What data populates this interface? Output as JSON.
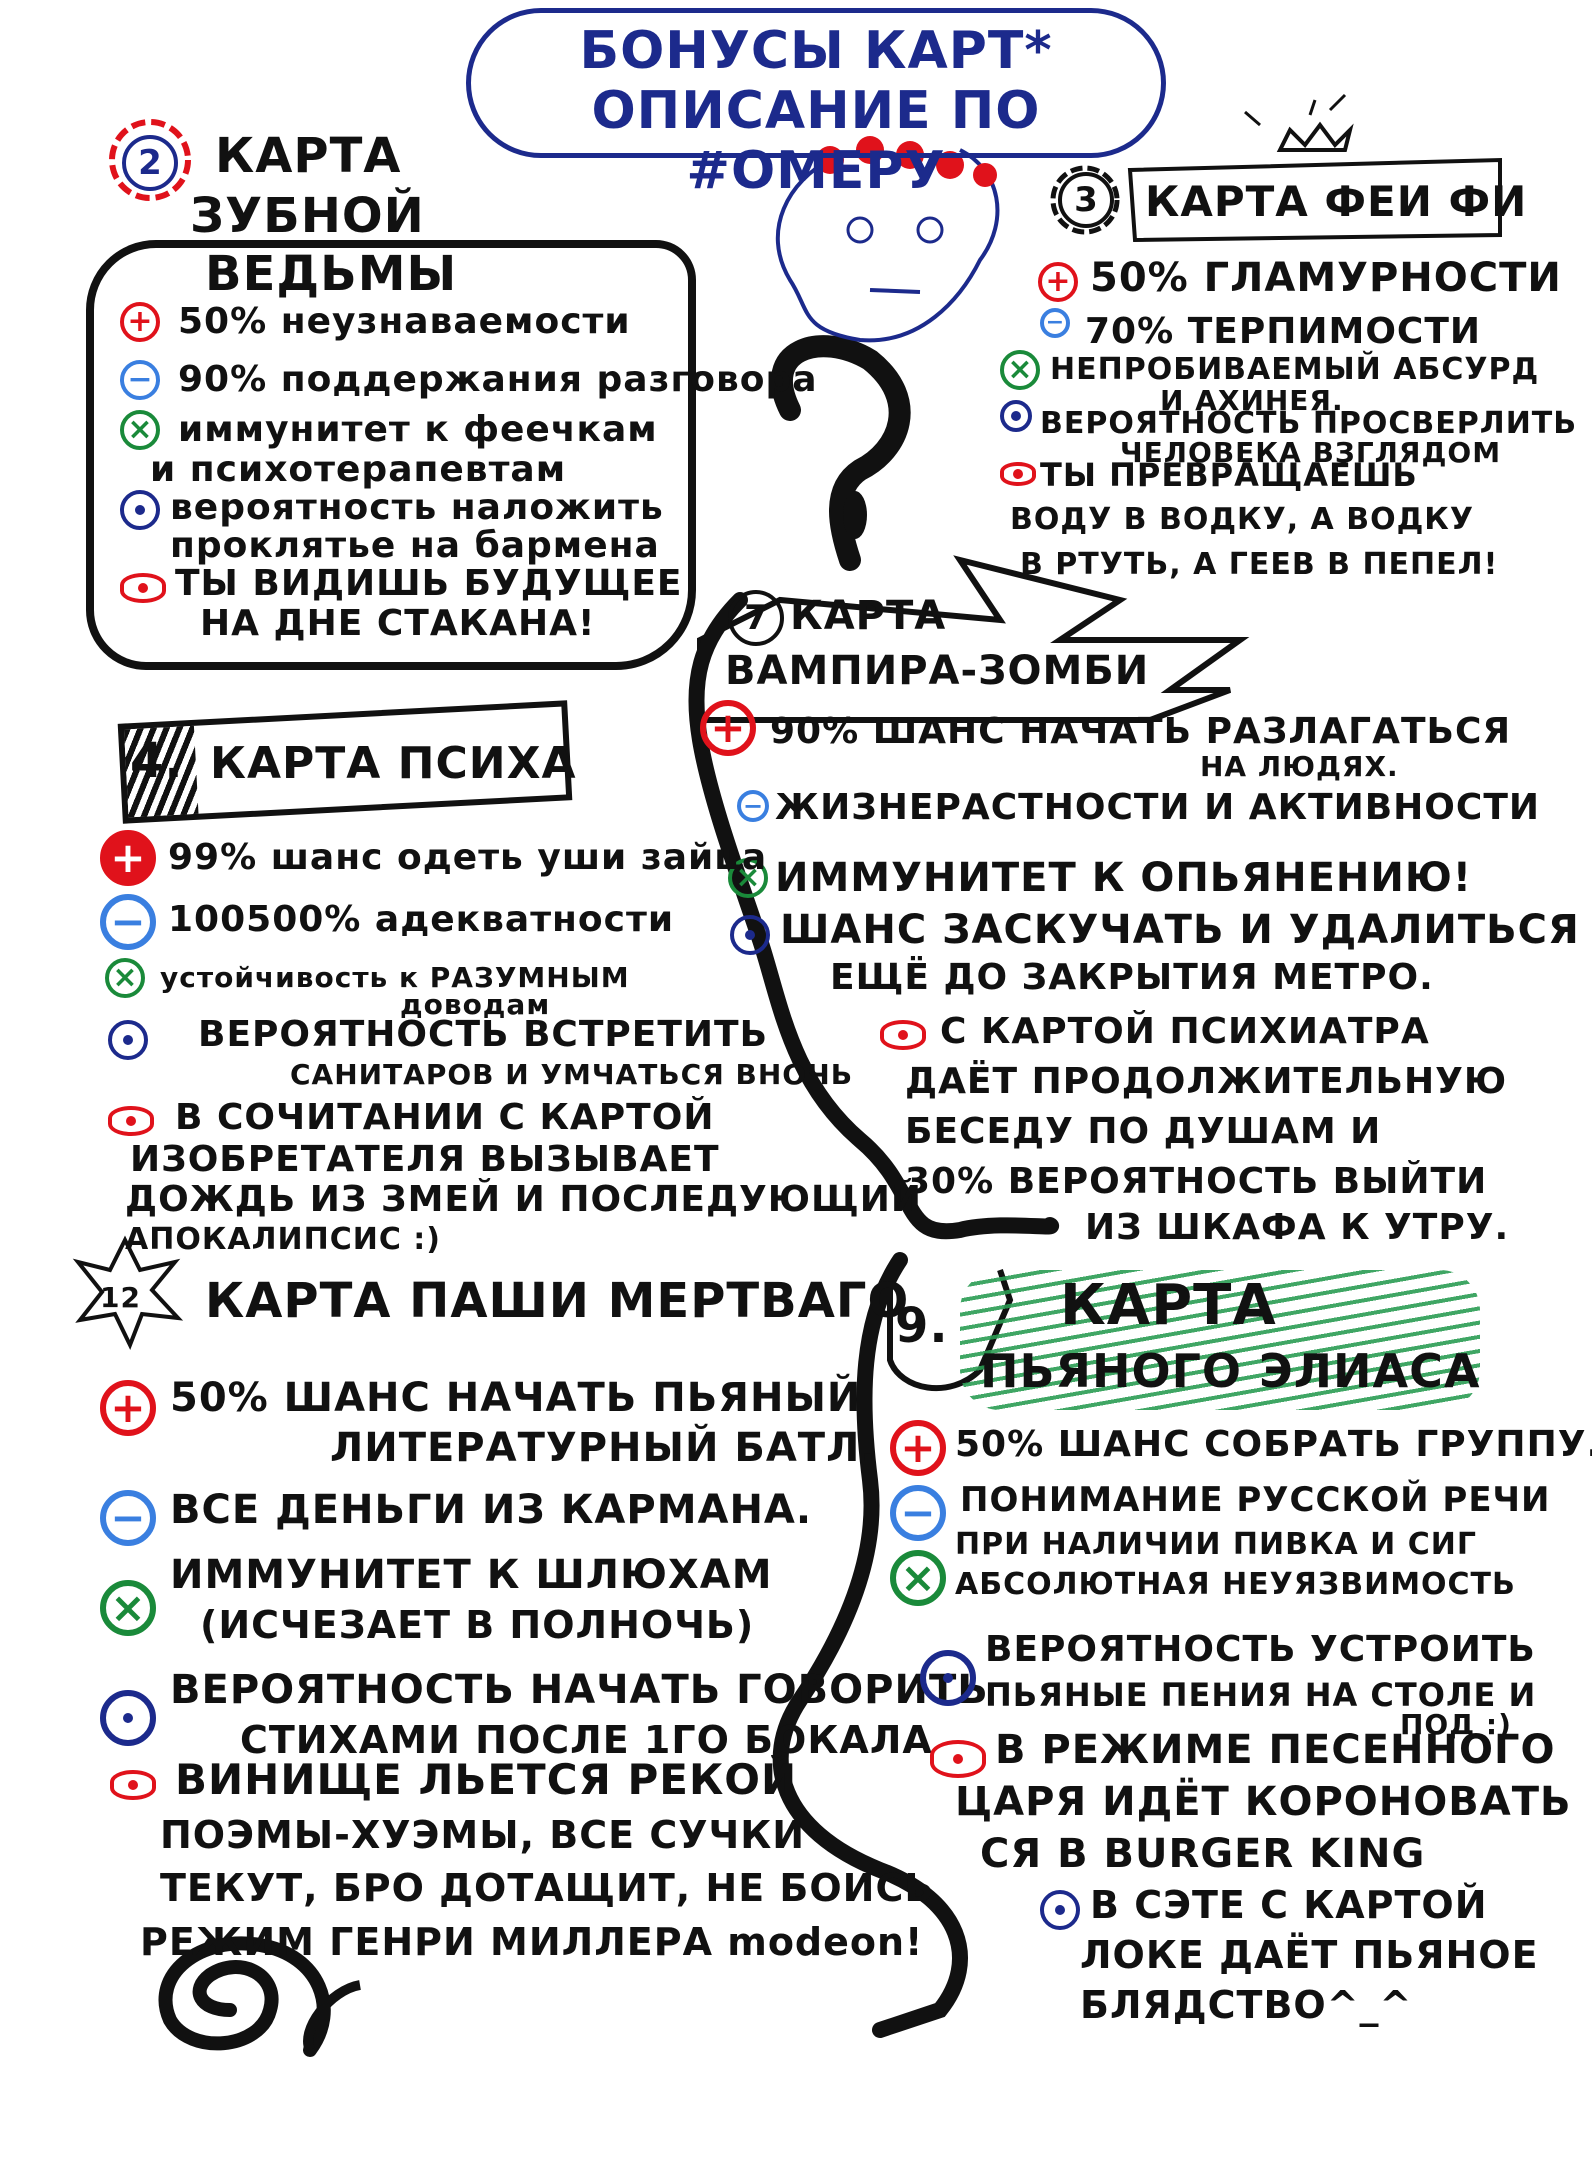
{
  "header": {
    "line1": "БОНУСЫ КАРТ*",
    "line2": "ОПИСАНИЕ ПО #ОМЕРУ"
  },
  "witch": {
    "number": "2",
    "title": [
      "КАРТА",
      "ЗУБНОЙ",
      "ВЕДЬМЫ"
    ],
    "plus": "50% неузнаваемости",
    "minus": "90% поддержания разговора",
    "cross": [
      "иммунитет к феечкам",
      "и психотерапевтам"
    ],
    "dot": [
      "вероятность наложить",
      "проклятье на бармена"
    ],
    "eye": [
      "ТЫ ВИДИШЬ БУДУЩЕЕ",
      "НА ДНЕ СТАКАНА!"
    ]
  },
  "fairy": {
    "number": "3",
    "title": "КАРТА ФЕИ ФИ",
    "plus": "50% ГЛАМУРНОСТИ",
    "minus": "70% ТЕРПИМОСТИ",
    "cross": [
      "НЕПРОБИВАЕМЫЙ АБСУРД",
      "И АХИНЕЯ."
    ],
    "dot": [
      "ВЕРОЯТНОСТЬ ПРОСВЕРЛИТЬ",
      "ЧЕЛОВЕКА ВЗГЛЯДОМ"
    ],
    "eye": [
      "ТЫ ПРЕВРАЩАЕШЬ",
      "ВОДУ В ВОДКУ, А ВОДКУ",
      "В РТУТЬ, А ГЕЕВ В ПЕПЕЛ!"
    ]
  },
  "vampire": {
    "number": "7",
    "title": [
      "КАРТА",
      "ВАМПИРА-ЗОМБИ"
    ],
    "plus": [
      "90% ШАНС НАЧАТЬ РАЗЛАГАТЬСЯ",
      "НА ЛЮДЯХ."
    ],
    "minus": "ЖИЗНЕРАСТНОСТИ И АКТИВНОСТИ",
    "cross": "ИММУНИТЕТ К ОПЬЯНЕНИЮ!",
    "dot": [
      "ШАНС ЗАСКУЧАТЬ И УДАЛИТЬСЯ",
      "ЕЩЁ ДО ЗАКРЫТИЯ МЕТРО."
    ],
    "eye": [
      "С КАРТОЙ ПСИХИАТРА",
      "ДАЁТ ПРОДОЛЖИТЕЛЬНУЮ",
      "БЕСЕДУ ПО ДУШАМ И",
      "30% ВЕРОЯТНОСТЬ ВЫЙТИ",
      "ИЗ ШКАФА К УТРУ."
    ]
  },
  "psycho": {
    "number": "4.",
    "title": "КАРТА ПСИХА",
    "plus": "99% шанс одеть уши зайца",
    "minus": "100500% адекватности",
    "cross": [
      "устойчивость к РАЗУМНЫМ",
      "доводам"
    ],
    "dot": [
      "ВЕРОЯТНОСТЬ ВСТРЕТИТЬ",
      "САНИТАРОВ И УМЧАТЬСЯ ВНОЧЬ"
    ],
    "eye": [
      "В СОЧИТАНИИ С КАРТОЙ",
      "ИЗОБРЕТАТЕЛЯ ВЫЗЫВАЕТ",
      "ДОЖДЬ ИЗ ЗМЕЙ И ПОСЛЕДУЮЩИЙ",
      "АПОКАЛИПСИС :)"
    ]
  },
  "pasha": {
    "number": "12",
    "title": "КАРТА ПАШИ МЕРТВАГО",
    "plus": [
      "50% ШАНС НАЧАТЬ ПЬЯНЫЙ",
      "ЛИТЕРАТУРНЫЙ БАТЛ."
    ],
    "minus": "ВСЕ ДЕНЬГИ ИЗ КАРМАНА.",
    "cross": [
      "ИММУНИТЕТ К ШЛЮХАМ",
      "(ИСЧЕЗАЕТ В ПОЛНОЧЬ)"
    ],
    "dot": [
      "ВЕРОЯТНОСТЬ НАЧАТЬ ГОВОРИТЬ",
      "СТИХАМИ ПОСЛЕ 1ГО БОКАЛА"
    ],
    "eye": [
      "ВИНИЩЕ ЛЬЕТСЯ РЕКОЙ",
      "ПОЭМЫ-ХУЭМЫ, ВСЕ СУЧКИ",
      "ТЕКУТ, БРО ДОТАЩИТ, НЕ БОИСЬ",
      "РЕЖИМ ГЕНРИ МИЛЛЕРА modeon!"
    ]
  },
  "drunk": {
    "number": "9.",
    "title": [
      "КАРТА",
      "ПЬЯНОГО ЭЛИАСА"
    ],
    "plus": "50% ШАНС СОБРАТЬ ГРУППУ.",
    "minus": [
      "ПОНИМАНИЕ РУССКОЙ РЕЧИ",
      "ПРИ НАЛИЧИИ ПИВКА И СИГ"
    ],
    "cross": "АБСОЛЮТНАЯ НЕУЯЗВИМОСТЬ",
    "dot": [
      "ВЕРОЯТНОСТЬ УСТРОИТЬ",
      "ПЬЯНЫЕ ПЕНИЯ НА СТОЛЕ И",
      "ПОД :)"
    ],
    "eye": [
      "В РЕЖИМЕ ПЕСЕННОГО",
      "ЦАРЯ ИДЁТ КОРОНОВАТЬ",
      "СЯ В BURGER KING"
    ],
    "extra": [
      "В СЭТЕ С КАРТОЙ",
      "ЛОКЕ ДАЁТ ПЬЯНОЕ",
      "БЛЯДСТВО^_^"
    ]
  },
  "colors": {
    "red": "#e0121b",
    "blue": "#3a7fe0",
    "green": "#1a8a3a",
    "navy": "#1c2a8c",
    "ink": "#111111"
  },
  "icons": [
    "plus-icon",
    "minus-icon",
    "cross-icon",
    "dot-icon",
    "eye-icon",
    "flower-icon",
    "question-mark-icon",
    "spiral-icon",
    "snake-icon",
    "crown-icon"
  ]
}
